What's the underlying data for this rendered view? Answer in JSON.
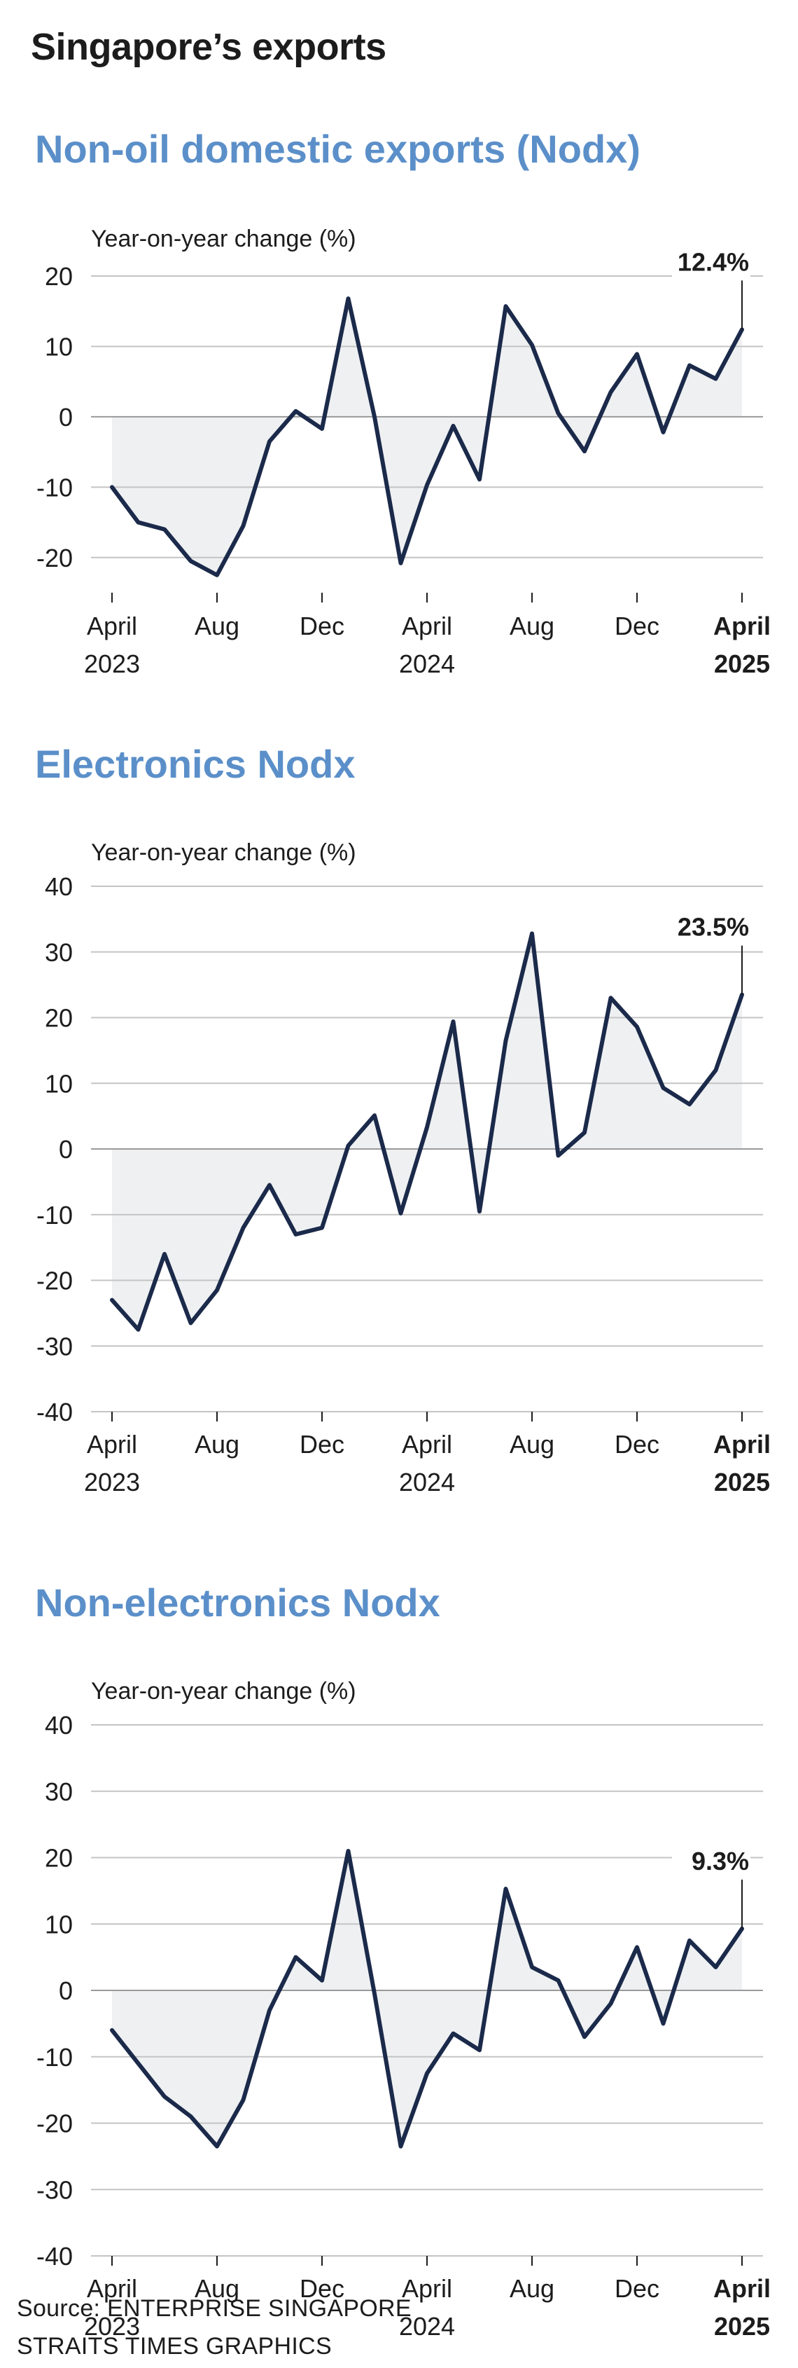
{
  "page": {
    "title": "Singapore’s exports",
    "source_line": "Source: ENTERPRISE SINGAPORE",
    "credit_line": "STRAITS TIMES GRAPHICS"
  },
  "chart_data": [
    {
      "type": "line",
      "title": "Non-oil domestic exports (Nodx)",
      "ylabel": "Year-on-year change (%)",
      "ylim": [
        -25,
        20
      ],
      "yticks": [
        20,
        10,
        0,
        -10,
        -20
      ],
      "grid": true,
      "area_fill": true,
      "x": [
        "Apr 2023",
        "May 2023",
        "Jun 2023",
        "Jul 2023",
        "Aug 2023",
        "Sep 2023",
        "Oct 2023",
        "Nov 2023",
        "Dec 2023",
        "Jan 2024",
        "Feb 2024",
        "Mar 2024",
        "Apr 2024",
        "May 2024",
        "Jun 2024",
        "Jul 2024",
        "Aug 2024",
        "Sep 2024",
        "Oct 2024",
        "Nov 2024",
        "Dec 2024",
        "Jan 2025",
        "Feb 2025",
        "Mar 2025",
        "Apr 2025"
      ],
      "xtick_labels": [
        {
          "index": 0,
          "line1": "April",
          "line2": "2023",
          "bold": false
        },
        {
          "index": 4,
          "line1": "Aug",
          "line2": "",
          "bold": false
        },
        {
          "index": 8,
          "line1": "Dec",
          "line2": "",
          "bold": false
        },
        {
          "index": 12,
          "line1": "April",
          "line2": "2024",
          "bold": false
        },
        {
          "index": 16,
          "line1": "Aug",
          "line2": "",
          "bold": false
        },
        {
          "index": 20,
          "line1": "Dec",
          "line2": "",
          "bold": false
        },
        {
          "index": 24,
          "line1": "April",
          "line2": "2025",
          "bold": true
        }
      ],
      "values": [
        -10,
        -15,
        -16,
        -20.5,
        -22.5,
        -15.5,
        -3.5,
        0.8,
        -1.7,
        16.8,
        0,
        -20.8,
        -9.7,
        -1.3,
        -8.9,
        15.7,
        10.2,
        0.5,
        -4.9,
        3.5,
        8.9,
        -2.2,
        7.3,
        5.4,
        12.4
      ],
      "callout": "12.4%"
    },
    {
      "type": "line",
      "title": "Electronics Nodx",
      "ylabel": "Year-on-year change (%)",
      "ylim": [
        -40,
        40
      ],
      "yticks": [
        40,
        30,
        20,
        10,
        0,
        -10,
        -20,
        -30,
        -40
      ],
      "grid": true,
      "area_fill": true,
      "x": [
        "Apr 2023",
        "May 2023",
        "Jun 2023",
        "Jul 2023",
        "Aug 2023",
        "Sep 2023",
        "Oct 2023",
        "Nov 2023",
        "Dec 2023",
        "Jan 2024",
        "Feb 2024",
        "Mar 2024",
        "Apr 2024",
        "May 2024",
        "Jun 2024",
        "Jul 2024",
        "Aug 2024",
        "Sep 2024",
        "Oct 2024",
        "Nov 2024",
        "Dec 2024",
        "Jan 2025",
        "Feb 2025",
        "Mar 2025",
        "Apr 2025"
      ],
      "xtick_labels": [
        {
          "index": 0,
          "line1": "April",
          "line2": "2023",
          "bold": false
        },
        {
          "index": 4,
          "line1": "Aug",
          "line2": "",
          "bold": false
        },
        {
          "index": 8,
          "line1": "Dec",
          "line2": "",
          "bold": false
        },
        {
          "index": 12,
          "line1": "April",
          "line2": "2024",
          "bold": false
        },
        {
          "index": 16,
          "line1": "Aug",
          "line2": "",
          "bold": false
        },
        {
          "index": 20,
          "line1": "Dec",
          "line2": "",
          "bold": false
        },
        {
          "index": 24,
          "line1": "April",
          "line2": "2025",
          "bold": true
        }
      ],
      "values": [
        -23,
        -27.5,
        -16,
        -26.5,
        -21.5,
        -12,
        -5.5,
        -13,
        -12,
        0.5,
        5.1,
        -9.8,
        3.3,
        19.4,
        -9.5,
        16.5,
        32.8,
        -1,
        2.5,
        23,
        18.6,
        9.3,
        6.8,
        12,
        23.5
      ],
      "callout": "23.5%"
    },
    {
      "type": "line",
      "title": "Non-electronics Nodx",
      "ylabel": "Year-on-year change (%)",
      "ylim": [
        -40,
        40
      ],
      "yticks": [
        40,
        30,
        20,
        10,
        0,
        -10,
        -20,
        -30,
        -40
      ],
      "grid": true,
      "area_fill": true,
      "x": [
        "Apr 2023",
        "May 2023",
        "Jun 2023",
        "Jul 2023",
        "Aug 2023",
        "Sep 2023",
        "Oct 2023",
        "Nov 2023",
        "Dec 2023",
        "Jan 2024",
        "Feb 2024",
        "Mar 2024",
        "Apr 2024",
        "May 2024",
        "Jun 2024",
        "Jul 2024",
        "Aug 2024",
        "Sep 2024",
        "Oct 2024",
        "Nov 2024",
        "Dec 2024",
        "Jan 2025",
        "Feb 2025",
        "Mar 2025",
        "Apr 2025"
      ],
      "xtick_labels": [
        {
          "index": 0,
          "line1": "April",
          "line2": "2023",
          "bold": false
        },
        {
          "index": 4,
          "line1": "Aug",
          "line2": "",
          "bold": false
        },
        {
          "index": 8,
          "line1": "Dec",
          "line2": "",
          "bold": false
        },
        {
          "index": 12,
          "line1": "April",
          "line2": "2024",
          "bold": false
        },
        {
          "index": 16,
          "line1": "Aug",
          "line2": "",
          "bold": false
        },
        {
          "index": 20,
          "line1": "Dec",
          "line2": "",
          "bold": false
        },
        {
          "index": 24,
          "line1": "April",
          "line2": "2025",
          "bold": true
        }
      ],
      "values": [
        -6,
        -11,
        -16,
        -19,
        -23.5,
        -16.5,
        -3,
        5,
        1.5,
        21,
        -0.5,
        -23.5,
        -12.5,
        -6.5,
        -9,
        15.3,
        3.5,
        1.5,
        -7,
        -2,
        6.5,
        -5,
        7.5,
        3.5,
        9.3
      ],
      "callout": "9.3%"
    }
  ]
}
